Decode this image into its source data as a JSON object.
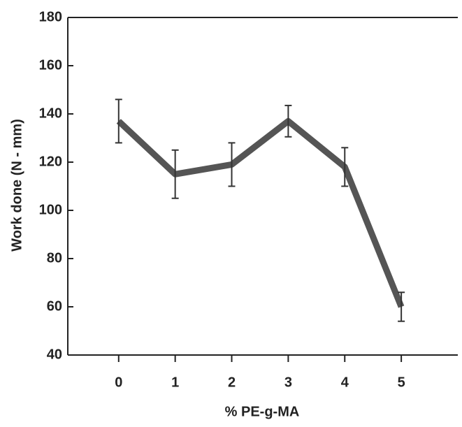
{
  "chart_data": {
    "type": "line",
    "xlabel": "% PE-g-MA",
    "ylabel": "Work done (N - mm)",
    "x": [
      0,
      1,
      2,
      3,
      4,
      5
    ],
    "series": [
      {
        "color": "#555555",
        "values": [
          137,
          115,
          119,
          137,
          118,
          60
        ],
        "errors": [
          9,
          10,
          9,
          6.5,
          8,
          6
        ]
      }
    ],
    "xlim": [
      -0.9,
      6
    ],
    "xticks": [
      0,
      1,
      2,
      3,
      4,
      5
    ],
    "ylim": [
      40,
      180
    ],
    "yticks": [
      40,
      60,
      80,
      100,
      120,
      140,
      160,
      180
    ]
  }
}
